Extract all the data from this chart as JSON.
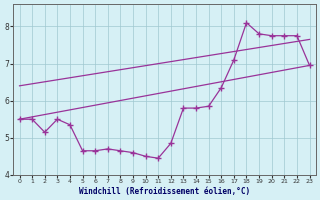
{
  "xlabel": "Windchill (Refroidissement éolien,°C)",
  "background_color": "#d6f0f5",
  "line_color": "#993399",
  "grid_color": "#a0c8d0",
  "xlim_min": -0.5,
  "xlim_max": 23.5,
  "ylim_min": 4.0,
  "ylim_max": 8.6,
  "yticks": [
    4,
    5,
    6,
    7,
    8
  ],
  "xticks": [
    0,
    1,
    2,
    3,
    4,
    5,
    6,
    7,
    8,
    9,
    10,
    11,
    12,
    13,
    14,
    15,
    16,
    17,
    18,
    19,
    20,
    21,
    22,
    23
  ],
  "line1_x": [
    0,
    23
  ],
  "line1_y": [
    5.5,
    6.95
  ],
  "line2_x": [
    0,
    23
  ],
  "line2_y": [
    6.4,
    7.65
  ],
  "line3_x": [
    0,
    1,
    2,
    3,
    4,
    5,
    6,
    7,
    8,
    9,
    10,
    11,
    12,
    13,
    14,
    15,
    16,
    17,
    18,
    19,
    20,
    21,
    22,
    23
  ],
  "line3_y": [
    5.5,
    5.5,
    5.15,
    5.5,
    5.35,
    4.65,
    4.65,
    4.7,
    4.65,
    4.6,
    4.5,
    4.45,
    4.85,
    5.8,
    5.8,
    5.85,
    6.35,
    7.1,
    8.1,
    7.8,
    7.75,
    7.75,
    7.75,
    6.95
  ]
}
